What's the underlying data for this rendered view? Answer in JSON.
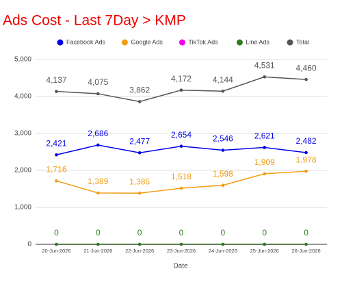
{
  "chart_data": {
    "type": "line",
    "title": "Ads Cost - Last 7Day > KMP",
    "x_label": "Date",
    "categories": [
      "20-Jun-2026",
      "21-Jun-2026",
      "22-Jun-2026",
      "23-Jun-2026",
      "24-Jun-2026",
      "25-Jun-2026",
      "26-Jun-2026"
    ],
    "series": [
      {
        "name": "Facebook Ads",
        "color": "#0000ee",
        "values": [
          2421,
          2686,
          2477,
          2654,
          2546,
          2621,
          2482
        ],
        "value_labels": [
          "2,421",
          "2,686",
          "2,477",
          "2,654",
          "2,546",
          "2,621",
          "2,482"
        ]
      },
      {
        "name": "Google Ads",
        "color": "#f39c12",
        "values": [
          1716,
          1389,
          1385,
          1518,
          1598,
          1909,
          1978
        ],
        "value_labels": [
          "1,716",
          "1,389",
          "1,385",
          "1,518",
          "1,598",
          "1,909",
          "1,978"
        ]
      },
      {
        "name": "TikTok Ads",
        "color": "#ee00ee",
        "values": [
          0,
          0,
          0,
          0,
          0,
          0,
          0
        ],
        "show_labels": false
      },
      {
        "name": "Line Ads",
        "color": "#2e7d1e",
        "values": [
          0,
          0,
          0,
          0,
          0,
          0,
          0
        ]
      },
      {
        "name": "Total",
        "color": "#555555",
        "values": [
          4137,
          4075,
          3862,
          4172,
          4144,
          4531,
          4460
        ],
        "value_labels": [
          "4,137",
          "4,075",
          "3,862",
          "4,172",
          "4,144",
          "4,531",
          "4,460"
        ]
      }
    ],
    "ylim": [
      0,
      5000
    ],
    "yticks": [
      0,
      {
        "value": 1000,
        "label": "1,000"
      },
      {
        "value": 2000,
        "label": "2,000"
      },
      {
        "value": 3000,
        "label": "3,000"
      },
      {
        "value": 4000,
        "label": "4,000"
      },
      {
        "value": 5000,
        "label": "5,000"
      }
    ],
    "grid": true,
    "legend": "top",
    "title_color": "#ee0000"
  }
}
